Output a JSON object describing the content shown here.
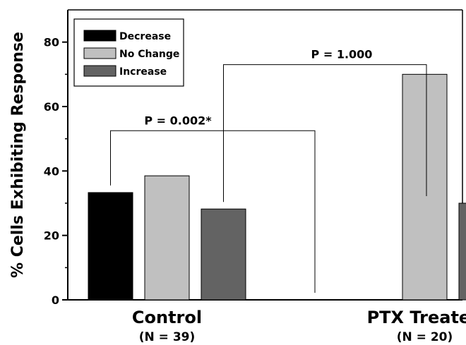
{
  "chart_data": {
    "type": "bar",
    "title": "",
    "xlabel": "",
    "ylabel": "% Cells Exhibiting Response",
    "ylim": [
      0,
      90
    ],
    "yticks": [
      0,
      20,
      40,
      60,
      80
    ],
    "grid": false,
    "legend_position": "top-left",
    "categories": [
      {
        "label": "Control",
        "sublabel": "(N = 39)"
      },
      {
        "label": "PTX Treated",
        "sublabel": "(N = 20)"
      }
    ],
    "series": [
      {
        "name": "Decrease",
        "color": "#000000",
        "values": [
          33.3,
          0
        ]
      },
      {
        "name": "No Change",
        "color": "#c0c0c0",
        "values": [
          38.5,
          70
        ]
      },
      {
        "name": "Increase",
        "color": "#636363",
        "values": [
          28.2,
          30
        ]
      }
    ],
    "annotations": [
      {
        "text": "P = 0.002*",
        "from": {
          "category": 0,
          "series": 0
        },
        "to": {
          "category": 1,
          "series": 0
        },
        "y_level": 52.5
      },
      {
        "text": "P = 1.000",
        "from": {
          "category": 0,
          "series": 2
        },
        "to": {
          "category": 1,
          "series": 2
        },
        "y_level": 73
      }
    ]
  }
}
